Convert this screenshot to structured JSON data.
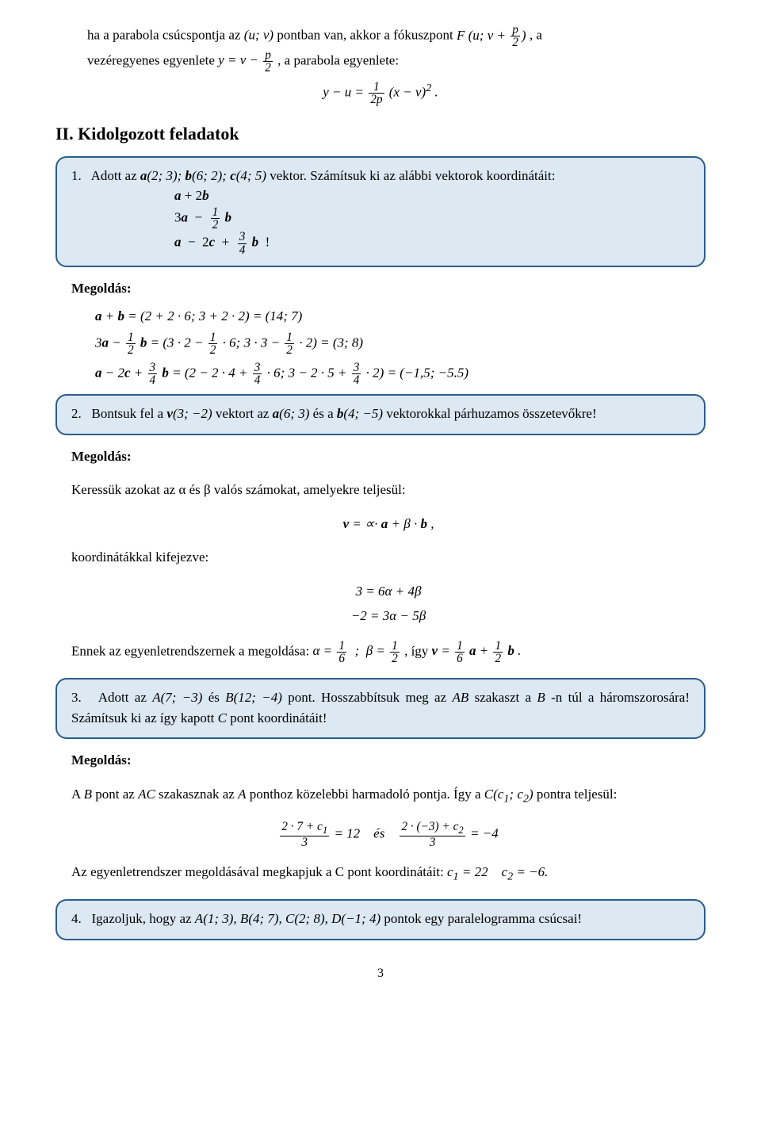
{
  "intro": {
    "line1_prefix": "ha a parabola csúcspontja az ",
    "line1_mid": " pontban van, akkor a fókuszpont ",
    "line1_suffix": ", a",
    "line2_prefix": "vezéregyenes egyenlete ",
    "line2_mid": " , a parabola egyenlete:"
  },
  "section2": {
    "title": "II. Kidolgozott feladatok"
  },
  "prob1": {
    "num": "1.",
    "text_pre": "Adott az ",
    "text_post1": " vektor. Számítsuk ki az alábbi vektorok koordinátáit:"
  },
  "sol_label": "Megoldás:",
  "prob2": {
    "num": "2.",
    "text_pre": "Bontsuk fel a ",
    "mid1": " vektort az ",
    "mid2": " és a ",
    "text_post": " vektorokkal párhuzamos összetevőkre!"
  },
  "sol2": {
    "line1": "Keressük azokat az α és β valós számokat, amelyekre teljesül:",
    "line2": "koordinátákkal kifejezve:",
    "line3_pre": "Ennek az egyenletrendszernek a megoldása: ",
    "line3_mid": " , így   "
  },
  "prob3": {
    "num": "3.",
    "text_pre": "Adott az ",
    "mid1": " és ",
    "mid2": " pont. Hosszabbítsuk meg az ",
    "mid3": " szakaszt a ",
    "mid4": "-n túl a háromszorosára! Számítsuk ki az így kapott ",
    "suffix": " pont koordinátáit!"
  },
  "sol3": {
    "line1_pre": "A ",
    "line1_mid1": " pont az ",
    "line1_mid2": " szakasznak az ",
    "line1_mid3": " ponthoz közelebbi harmadoló pontja. Így a ",
    "line1_suffix": " pontra teljesül:",
    "line3": "Az egyenletrendszer megoldásával megkapjuk a C pont koordinátáit:  "
  },
  "prob4": {
    "num": "4.",
    "text_pre": "Igazoljuk, hogy az ",
    "text_post": " pontok egy paralelogramma csúcsai!"
  },
  "page_number": "3",
  "colors": {
    "box_bg": "#dce8f2",
    "box_border": "#2b5d8a",
    "text": "#000000",
    "page_bg": "#ffffff"
  },
  "fonts": {
    "body_family": "Times New Roman",
    "body_size_pt": 12,
    "heading_size_pt": 16
  }
}
